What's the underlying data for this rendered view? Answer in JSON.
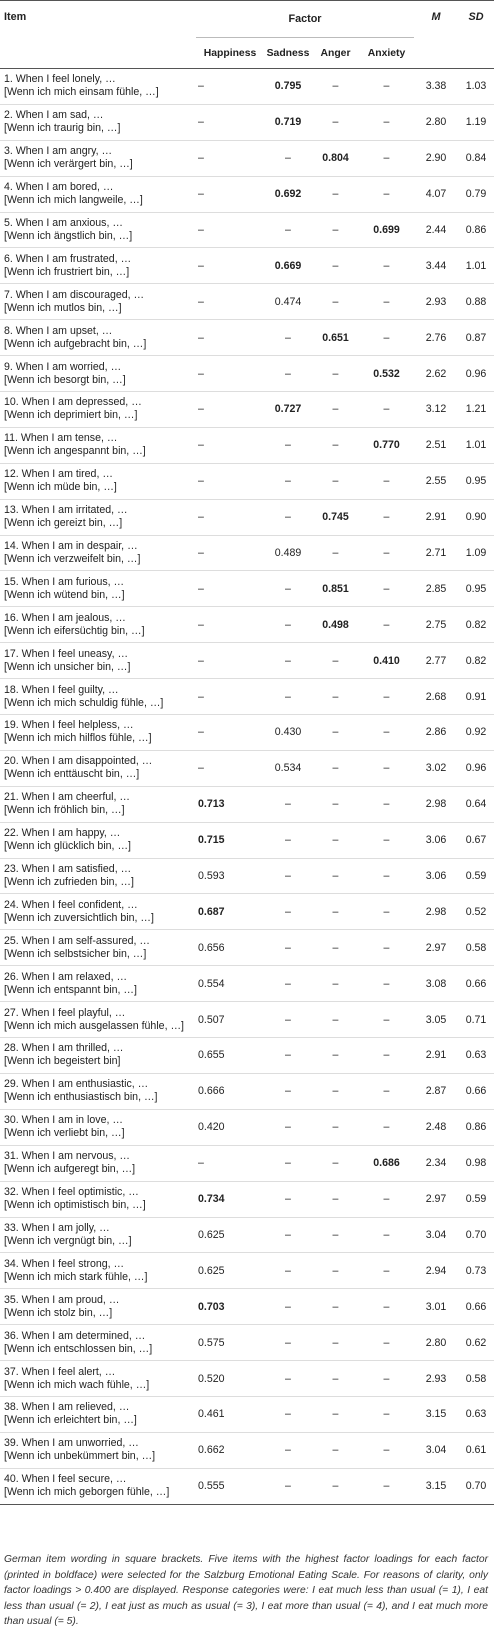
{
  "headers": {
    "item": "Item",
    "factor": "Factor",
    "m": "M",
    "sd": "SD",
    "factors": [
      "Happiness",
      "Sadness",
      "Anger",
      "Anxiety"
    ]
  },
  "rows": [
    {
      "en": "1. When I feel lonely, …",
      "de": "[Wenn ich mich einsam fühle, …]",
      "f": [
        "–",
        "0.795",
        "–",
        "–"
      ],
      "bold": 1,
      "m": "3.38",
      "sd": "1.03"
    },
    {
      "en": "2. When I am sad, …",
      "de": "[Wenn ich traurig bin, …]",
      "f": [
        "–",
        "0.719",
        "–",
        "–"
      ],
      "bold": 1,
      "m": "2.80",
      "sd": "1.19"
    },
    {
      "en": "3. When I am angry, …",
      "de": "[Wenn ich verärgert bin, …]",
      "f": [
        "–",
        "–",
        "0.804",
        "–"
      ],
      "bold": 2,
      "m": "2.90",
      "sd": "0.84"
    },
    {
      "en": "4. When I am bored, …",
      "de": "[Wenn ich mich langweile, …]",
      "f": [
        "–",
        "0.692",
        "–",
        "–"
      ],
      "bold": 1,
      "m": "4.07",
      "sd": "0.79"
    },
    {
      "en": "5. When I am anxious, …",
      "de": "[Wenn ich ängstlich bin, …]",
      "f": [
        "–",
        "–",
        "–",
        "0.699"
      ],
      "bold": 3,
      "m": "2.44",
      "sd": "0.86"
    },
    {
      "en": "6. When I am frustrated, …",
      "de": "[Wenn ich frustriert bin, …]",
      "f": [
        "–",
        "0.669",
        "–",
        "–"
      ],
      "bold": 1,
      "m": "3.44",
      "sd": "1.01"
    },
    {
      "en": "7. When I am discouraged, …",
      "de": "[Wenn ich mutlos bin, …]",
      "f": [
        "–",
        "0.474",
        "–",
        "–"
      ],
      "bold": -1,
      "m": "2.93",
      "sd": "0.88"
    },
    {
      "en": "8. When I am upset, …",
      "de": "[Wenn ich aufgebracht bin, …]",
      "f": [
        "–",
        "–",
        "0.651",
        "–"
      ],
      "bold": 2,
      "m": "2.76",
      "sd": "0.87"
    },
    {
      "en": "9. When I am worried, …",
      "de": "[Wenn ich besorgt bin, …]",
      "f": [
        "–",
        "–",
        "–",
        "0.532"
      ],
      "bold": 3,
      "m": "2.62",
      "sd": "0.96"
    },
    {
      "en": "10. When I am depressed, …",
      "de": "[Wenn ich deprimiert bin, …]",
      "f": [
        "–",
        "0.727",
        "–",
        "–"
      ],
      "bold": 1,
      "m": "3.12",
      "sd": "1.21"
    },
    {
      "en": "11. When I am tense, …",
      "de": "[Wenn ich angespannt bin, …]",
      "f": [
        "–",
        "–",
        "–",
        "0.770"
      ],
      "bold": 3,
      "m": "2.51",
      "sd": "1.01"
    },
    {
      "en": "12. When I am tired, …",
      "de": "[Wenn ich müde bin, …]",
      "f": [
        "–",
        "–",
        "–",
        "–"
      ],
      "bold": -1,
      "m": "2.55",
      "sd": "0.95"
    },
    {
      "en": "13. When I am irritated, …",
      "de": "[Wenn ich gereizt bin, …]",
      "f": [
        "–",
        "–",
        "0.745",
        "–"
      ],
      "bold": 2,
      "m": "2.91",
      "sd": "0.90"
    },
    {
      "en": "14. When I am in despair, …",
      "de": "[Wenn ich verzweifelt bin, …]",
      "f": [
        "–",
        "0.489",
        "–",
        "–"
      ],
      "bold": -1,
      "m": "2.71",
      "sd": "1.09"
    },
    {
      "en": "15. When I am furious, …",
      "de": "[Wenn ich wütend bin, …]",
      "f": [
        "–",
        "–",
        "0.851",
        "–"
      ],
      "bold": 2,
      "m": "2.85",
      "sd": "0.95"
    },
    {
      "en": "16. When I am jealous, …",
      "de": "[Wenn ich eifersüchtig bin, …]",
      "f": [
        "–",
        "–",
        "0.498",
        "–"
      ],
      "bold": 2,
      "m": "2.75",
      "sd": "0.82"
    },
    {
      "en": "17. When I feel uneasy, …",
      "de": "[Wenn ich unsicher bin, …]",
      "f": [
        "–",
        "–",
        "–",
        "0.410"
      ],
      "bold": 3,
      "m": "2.77",
      "sd": "0.82"
    },
    {
      "en": "18. When I feel guilty, …",
      "de": "[Wenn ich mich schuldig fühle, …]",
      "f": [
        "–",
        "–",
        "–",
        "–"
      ],
      "bold": -1,
      "m": "2.68",
      "sd": "0.91"
    },
    {
      "en": "19. When I feel helpless, …",
      "de": "[Wenn ich mich hilflos fühle, …]",
      "f": [
        "–",
        "0.430",
        "–",
        "–"
      ],
      "bold": -1,
      "m": "2.86",
      "sd": "0.92"
    },
    {
      "en": "20. When I am disappointed, …",
      "de": "[Wenn ich enttäuscht bin, …]",
      "f": [
        "–",
        "0.534",
        "–",
        "–"
      ],
      "bold": -1,
      "m": "3.02",
      "sd": "0.96"
    },
    {
      "en": "21. When I am cheerful, …",
      "de": "[Wenn ich fröhlich bin, …]",
      "f": [
        "0.713",
        "–",
        "–",
        "–"
      ],
      "bold": 0,
      "m": "2.98",
      "sd": "0.64"
    },
    {
      "en": "22. When I am happy, …",
      "de": "[Wenn ich glücklich bin, …]",
      "f": [
        "0.715",
        "–",
        "–",
        "–"
      ],
      "bold": 0,
      "m": "3.06",
      "sd": "0.67"
    },
    {
      "en": "23. When I am satisfied, …",
      "de": "[Wenn ich zufrieden bin, …]",
      "f": [
        "0.593",
        "–",
        "–",
        "–"
      ],
      "bold": -1,
      "m": "3.06",
      "sd": "0.59"
    },
    {
      "en": "24. When I feel confident, …",
      "de": "[Wenn ich zuversichtlich bin, …]",
      "f": [
        "0.687",
        "–",
        "–",
        "–"
      ],
      "bold": 0,
      "m": "2.98",
      "sd": "0.52"
    },
    {
      "en": "25. When I am self-assured, …",
      "de": "[Wenn ich selbstsicher bin, …]",
      "f": [
        "0.656",
        "–",
        "–",
        "–"
      ],
      "bold": -1,
      "m": "2.97",
      "sd": "0.58"
    },
    {
      "en": "26. When I am relaxed, …",
      "de": "[Wenn ich entspannt bin, …]",
      "f": [
        "0.554",
        "–",
        "–",
        "–"
      ],
      "bold": -1,
      "m": "3.08",
      "sd": "0.66"
    },
    {
      "en": "27. When I feel playful, …",
      "de": "[Wenn ich mich ausgelassen fühle, …]",
      "f": [
        "0.507",
        "–",
        "–",
        "–"
      ],
      "bold": -1,
      "m": "3.05",
      "sd": "0.71"
    },
    {
      "en": "28. When I am thrilled, …",
      "de": "[Wenn ich begeistert bin]",
      "f": [
        "0.655",
        "–",
        "–",
        "–"
      ],
      "bold": -1,
      "m": "2.91",
      "sd": "0.63"
    },
    {
      "en": "29. When I am enthusiastic, …",
      "de": "[Wenn ich enthusiastisch bin, …]",
      "f": [
        "0.666",
        "–",
        "–",
        "–"
      ],
      "bold": -1,
      "m": "2.87",
      "sd": "0.66"
    },
    {
      "en": "30. When I am in love, …",
      "de": "[Wenn ich verliebt bin, …]",
      "f": [
        "0.420",
        "–",
        "–",
        "–"
      ],
      "bold": -1,
      "m": "2.48",
      "sd": "0.86"
    },
    {
      "en": "31. When I am nervous, …",
      "de": "[Wenn ich aufgeregt bin, …]",
      "f": [
        "–",
        "–",
        "–",
        "0.686"
      ],
      "bold": 3,
      "m": "2.34",
      "sd": "0.98"
    },
    {
      "en": "32. When I feel optimistic, …",
      "de": "[Wenn ich optimistisch bin, …]",
      "f": [
        "0.734",
        "–",
        "–",
        "–"
      ],
      "bold": 0,
      "m": "2.97",
      "sd": "0.59"
    },
    {
      "en": "33. When I am jolly, …",
      "de": "[Wenn ich vergnügt bin, …]",
      "f": [
        "0.625",
        "–",
        "–",
        "–"
      ],
      "bold": -1,
      "m": "3.04",
      "sd": "0.70"
    },
    {
      "en": "34. When I feel strong, …",
      "de": "[Wenn ich mich stark fühle, …]",
      "f": [
        "0.625",
        "–",
        "–",
        "–"
      ],
      "bold": -1,
      "m": "2.94",
      "sd": "0.73"
    },
    {
      "en": "35. When I am proud, …",
      "de": "[Wenn ich stolz bin, …]",
      "f": [
        "0.703",
        "–",
        "–",
        "–"
      ],
      "bold": 0,
      "m": "3.01",
      "sd": "0.66"
    },
    {
      "en": "36. When I am determined, …",
      "de": "[Wenn ich entschlossen bin, …]",
      "f": [
        "0.575",
        "–",
        "–",
        "–"
      ],
      "bold": -1,
      "m": "2.80",
      "sd": "0.62"
    },
    {
      "en": "37. When I feel alert, …",
      "de": "[Wenn ich mich wach fühle, …]",
      "f": [
        "0.520",
        "–",
        "–",
        "–"
      ],
      "bold": -1,
      "m": "2.93",
      "sd": "0.58"
    },
    {
      "en": "38. When I am relieved, …",
      "de": "[Wenn ich erleichtert bin, …]",
      "f": [
        "0.461",
        "–",
        "–",
        "–"
      ],
      "bold": -1,
      "m": "3.15",
      "sd": "0.63"
    },
    {
      "en": "39. When I am unworried, …",
      "de": "[Wenn ich unbekümmert bin, …]",
      "f": [
        "0.662",
        "–",
        "–",
        "–"
      ],
      "bold": -1,
      "m": "3.04",
      "sd": "0.61"
    },
    {
      "en": "40. When I feel secure, …",
      "de": "[Wenn ich mich geborgen fühle, …]",
      "f": [
        "0.555",
        "–",
        "–",
        "–"
      ],
      "bold": -1,
      "m": "3.15",
      "sd": "0.70"
    }
  ],
  "note": "German item wording in square brackets. Five items with the highest factor loadings for each factor (printed in boldface) were selected for the Salzburg Emotional Eating Scale. For reasons of clarity, only factor loadings > 0.400 are displayed. Response categories were: I eat much less than usual (= 1), I eat less than usual (= 2), I eat just as much as usual (= 3), I eat more than usual (= 4), and I eat much more than usual (= 5)."
}
